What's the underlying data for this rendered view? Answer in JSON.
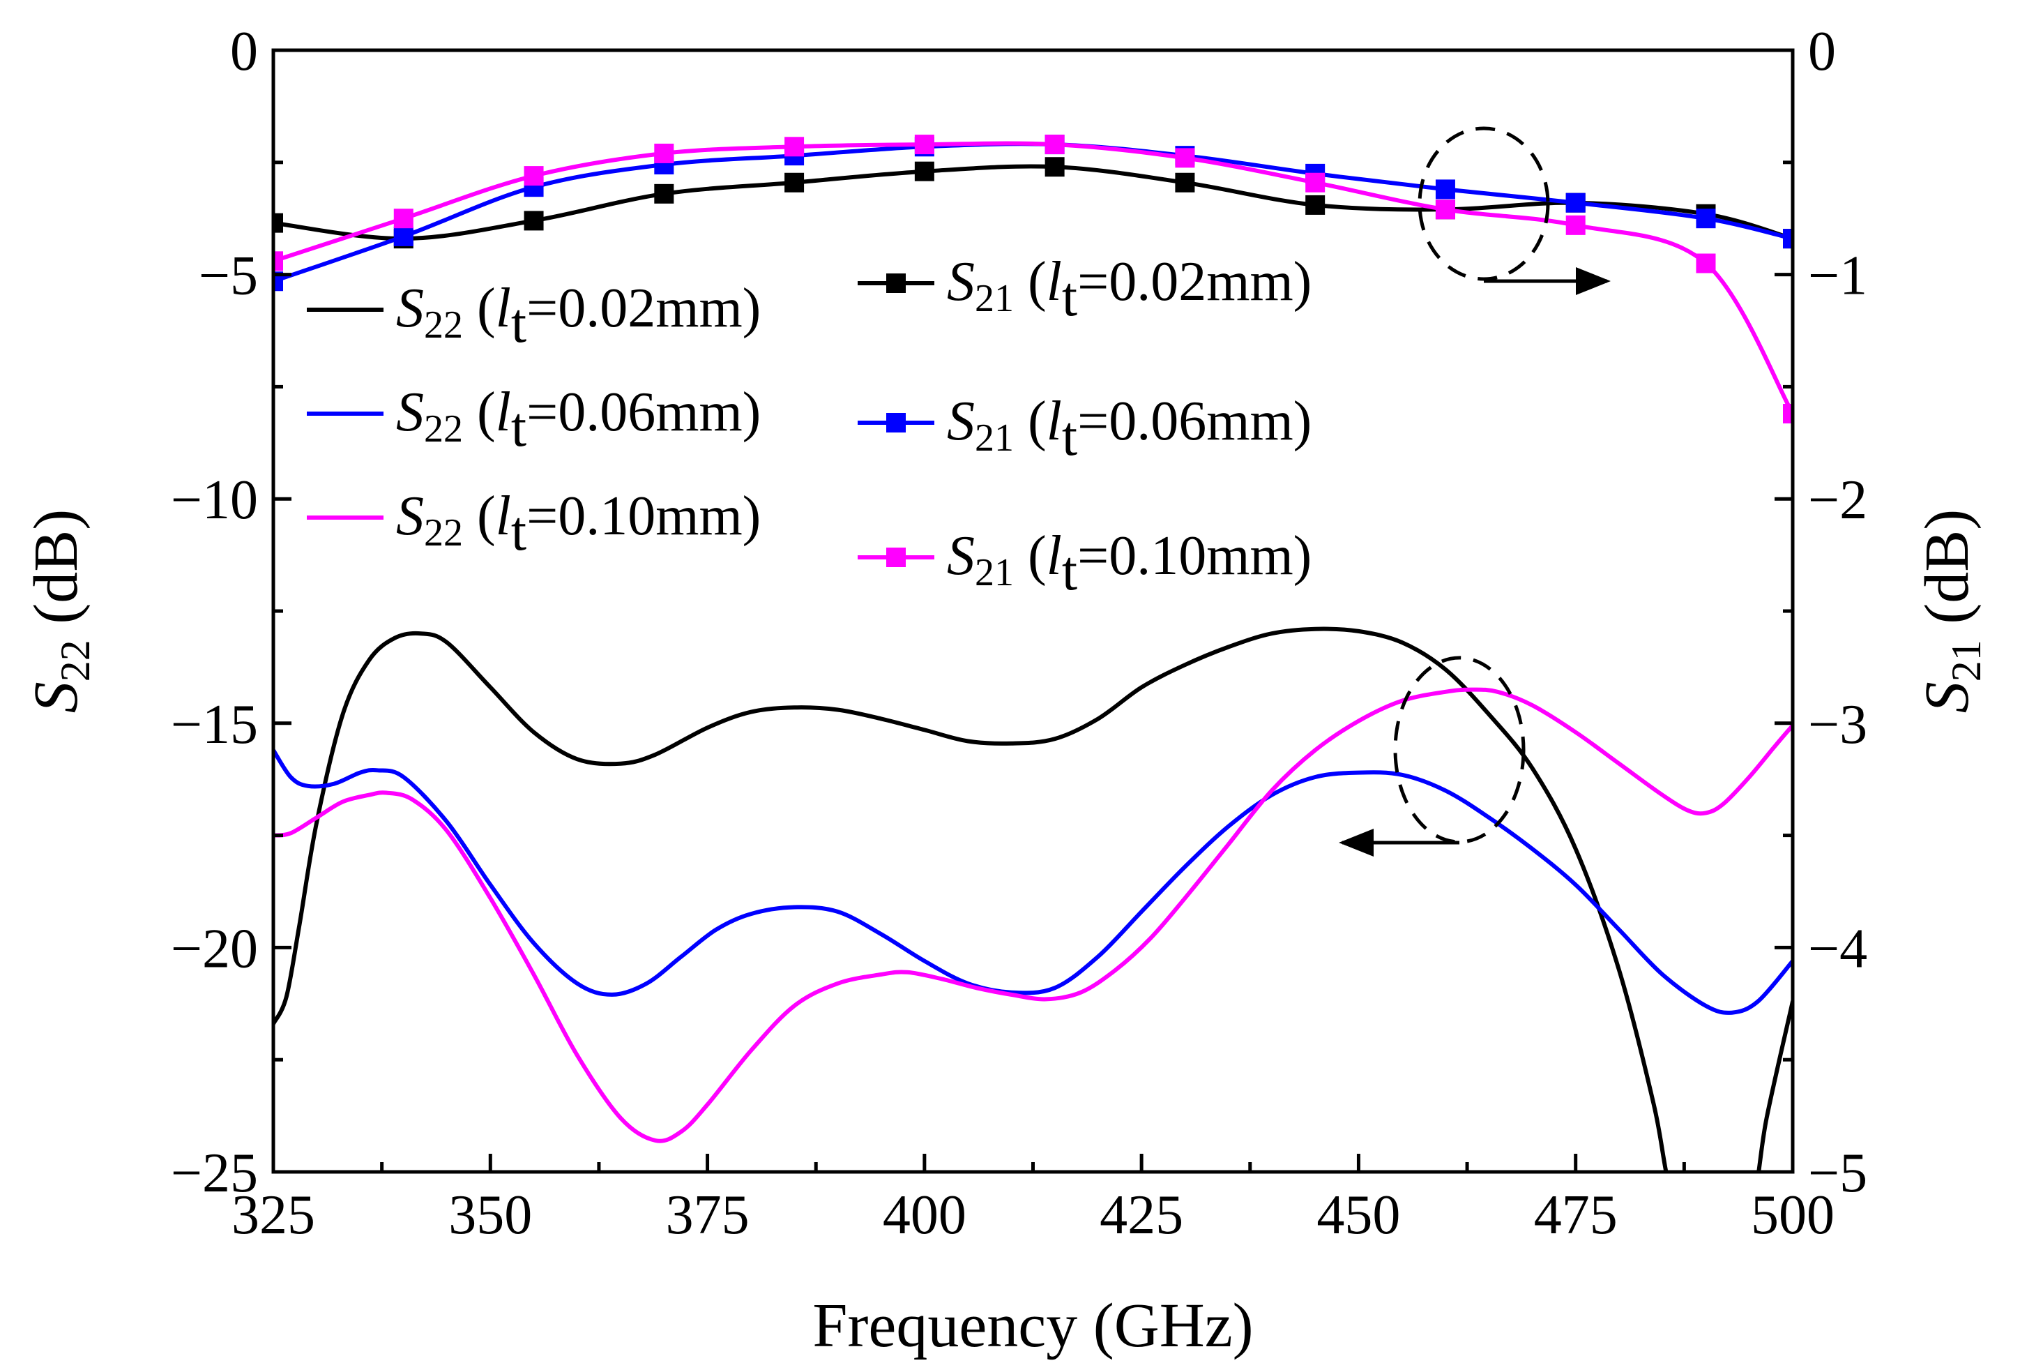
{
  "chart_data": {
    "type": "line",
    "x_axis": {
      "label": "Frequency (GHz)",
      "range": [
        325,
        500
      ],
      "ticks": [
        325,
        350,
        375,
        400,
        425,
        450,
        475,
        500
      ]
    },
    "y_left": {
      "label_main": "S",
      "label_sub": "22",
      "label_rest": " (dB)",
      "range": [
        -25,
        0
      ],
      "ticks": [
        0,
        -5,
        -10,
        -15,
        -20,
        -25
      ],
      "tick_labels": [
        "0",
        "−5",
        "−10",
        "−15",
        "−20",
        "−25"
      ]
    },
    "y_right": {
      "label_main": "S",
      "label_sub": "21",
      "label_rest": " (dB)",
      "range": [
        -5,
        0
      ],
      "ticks": [
        0,
        -1,
        -2,
        -3,
        -4,
        -5
      ],
      "tick_labels": [
        "0",
        "−1",
        "−2",
        "−3",
        "−4",
        "−5"
      ]
    },
    "colors": {
      "black": "#000000",
      "blue": "#0000ff",
      "magenta": "#ff00ff"
    },
    "series": [
      {
        "name": "S22 (lt=0.02mm)",
        "axis": "left",
        "color": "#000000",
        "markers": false,
        "legend": {
          "main": "S",
          "sub": "22",
          "pre": " (",
          "ital": "l",
          "lsub": "t",
          "post": "=0.02mm)"
        },
        "x": [
          325,
          326.5,
          328,
          330,
          333,
          336,
          339,
          342,
          345,
          350,
          355,
          360,
          365,
          369,
          375,
          380,
          385,
          390,
          395,
          400,
          405,
          410,
          415,
          420,
          425,
          430,
          435,
          440,
          445,
          450,
          455,
          460,
          465,
          470,
          475,
          480,
          484,
          486,
          490,
          495,
          497,
          500
        ],
        "y": [
          -21.7,
          -21.1,
          -19.5,
          -17.2,
          -14.8,
          -13.6,
          -13.1,
          -13.0,
          -13.2,
          -14.2,
          -15.2,
          -15.8,
          -15.9,
          -15.7,
          -15.1,
          -14.75,
          -14.65,
          -14.7,
          -14.9,
          -15.15,
          -15.4,
          -15.45,
          -15.35,
          -14.9,
          -14.2,
          -13.7,
          -13.3,
          -13.0,
          -12.9,
          -12.95,
          -13.2,
          -13.8,
          -14.8,
          -16.0,
          -17.8,
          -20.5,
          -23.5,
          -25.5,
          -28.0,
          -26.0,
          -23.8,
          -21.2
        ]
      },
      {
        "name": "S22 (lt=0.06mm)",
        "axis": "left",
        "color": "#0000ff",
        "markers": false,
        "legend": {
          "main": "S",
          "sub": "22",
          "pre": " (",
          "ital": "l",
          "lsub": "t",
          "post": "=0.06mm)"
        },
        "x": [
          325,
          327,
          329,
          332,
          335,
          337,
          340,
          345,
          350,
          355,
          360,
          364,
          368,
          372,
          376,
          380,
          385,
          390,
          395,
          400,
          405,
          410,
          415,
          420,
          425,
          430,
          435,
          440,
          445,
          450,
          455,
          460,
          465,
          470,
          475,
          480,
          485,
          490,
          493,
          496,
          500
        ],
        "y": [
          -15.6,
          -16.2,
          -16.4,
          -16.35,
          -16.1,
          -16.05,
          -16.2,
          -17.2,
          -18.6,
          -19.9,
          -20.8,
          -21.05,
          -20.8,
          -20.2,
          -19.6,
          -19.25,
          -19.1,
          -19.2,
          -19.7,
          -20.3,
          -20.8,
          -21.0,
          -20.9,
          -20.2,
          -19.2,
          -18.2,
          -17.3,
          -16.6,
          -16.2,
          -16.1,
          -16.15,
          -16.5,
          -17.1,
          -17.8,
          -18.6,
          -19.6,
          -20.6,
          -21.3,
          -21.45,
          -21.2,
          -20.3
        ]
      },
      {
        "name": "S22 (lt=0.10mm)",
        "axis": "left",
        "color": "#ff00ff",
        "markers": false,
        "legend": {
          "main": "S",
          "sub": "22",
          "pre": " (",
          "ital": "l",
          "lsub": "t",
          "post": "=0.10mm)"
        },
        "x": [
          325,
          327,
          330,
          333,
          336,
          338,
          341,
          345,
          350,
          355,
          360,
          365,
          369,
          372,
          375,
          380,
          385,
          390,
          395,
          398,
          402,
          406,
          410,
          414,
          418,
          422,
          426,
          430,
          435,
          440,
          445,
          450,
          455,
          460,
          463,
          466,
          470,
          475,
          480,
          485,
          488,
          490,
          492,
          495,
          498,
          500
        ],
        "y": [
          -17.5,
          -17.45,
          -17.1,
          -16.75,
          -16.6,
          -16.55,
          -16.7,
          -17.4,
          -18.9,
          -20.6,
          -22.4,
          -23.8,
          -24.3,
          -24.1,
          -23.5,
          -22.3,
          -21.3,
          -20.8,
          -20.6,
          -20.55,
          -20.7,
          -20.9,
          -21.05,
          -21.15,
          -21.0,
          -20.5,
          -19.8,
          -18.9,
          -17.7,
          -16.5,
          -15.6,
          -14.95,
          -14.5,
          -14.3,
          -14.25,
          -14.3,
          -14.6,
          -15.2,
          -15.9,
          -16.6,
          -16.95,
          -17.0,
          -16.8,
          -16.2,
          -15.5,
          -15.05
        ]
      },
      {
        "name": "S21 (lt=0.02mm)",
        "axis": "right",
        "color": "#000000",
        "markers": true,
        "legend": {
          "main": "S",
          "sub": "21",
          "pre": " (",
          "ital": "l",
          "lsub": "t",
          "post": "=0.02mm)"
        },
        "x": [
          325,
          340,
          355,
          370,
          385,
          400,
          415,
          430,
          445,
          460,
          475,
          490,
          500
        ],
        "y": [
          -0.77,
          -0.84,
          -0.76,
          -0.64,
          -0.59,
          -0.54,
          -0.52,
          -0.59,
          -0.69,
          -0.71,
          -0.68,
          -0.73,
          -0.84
        ]
      },
      {
        "name": "S21 (lt=0.06mm)",
        "axis": "right",
        "color": "#0000ff",
        "markers": true,
        "legend": {
          "main": "S",
          "sub": "21",
          "pre": " (",
          "ital": "l",
          "lsub": "t",
          "post": "=0.06mm)"
        },
        "x": [
          325,
          340,
          355,
          370,
          385,
          400,
          415,
          430,
          445,
          460,
          475,
          490,
          500
        ],
        "y": [
          -1.03,
          -0.83,
          -0.61,
          -0.51,
          -0.47,
          -0.43,
          -0.42,
          -0.47,
          -0.55,
          -0.62,
          -0.68,
          -0.75,
          -0.84
        ]
      },
      {
        "name": "S21 (lt=0.10mm)",
        "axis": "right",
        "color": "#ff00ff",
        "markers": true,
        "legend": {
          "main": "S",
          "sub": "21",
          "pre": " (",
          "ital": "l",
          "lsub": "t",
          "post": "=0.10mm)"
        },
        "x": [
          325,
          340,
          355,
          370,
          385,
          400,
          415,
          430,
          445,
          460,
          475,
          490,
          500
        ],
        "y": [
          -0.94,
          -0.75,
          -0.56,
          -0.46,
          -0.43,
          -0.42,
          -0.42,
          -0.48,
          -0.59,
          -0.71,
          -0.78,
          -0.95,
          -1.62
        ]
      }
    ],
    "annotations": [
      {
        "type": "ellipse-arrow",
        "meaning": "S21 curves read on right axis",
        "direction": "right"
      },
      {
        "type": "ellipse-arrow",
        "meaning": "S22 curves read on left axis",
        "direction": "left"
      }
    ],
    "grid": false
  }
}
